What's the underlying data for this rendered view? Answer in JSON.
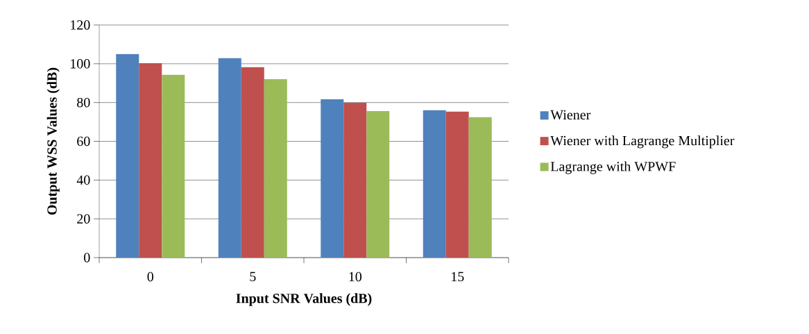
{
  "chart_data": {
    "type": "bar",
    "xlabel": "Input SNR Values (dB)",
    "ylabel": "Output WSS Values (dB)",
    "categories": [
      "0",
      "5",
      "10",
      "15"
    ],
    "series": [
      {
        "name": "Wiener",
        "color": "#4f81bd",
        "values": [
          105,
          102.9,
          81.7,
          76
        ]
      },
      {
        "name": "Wiener with Lagrange Multiplier",
        "color": "#c0504d",
        "values": [
          100.3,
          98.2,
          79.9,
          75.3
        ]
      },
      {
        "name": "Lagrange with WPWF",
        "color": "#9bbb59",
        "values": [
          94.3,
          92.1,
          75.6,
          72.4
        ]
      }
    ],
    "ylim": [
      0,
      120
    ],
    "yticks": [
      0,
      20,
      40,
      60,
      80,
      100,
      120
    ],
    "grid": "y",
    "legend": "right"
  }
}
